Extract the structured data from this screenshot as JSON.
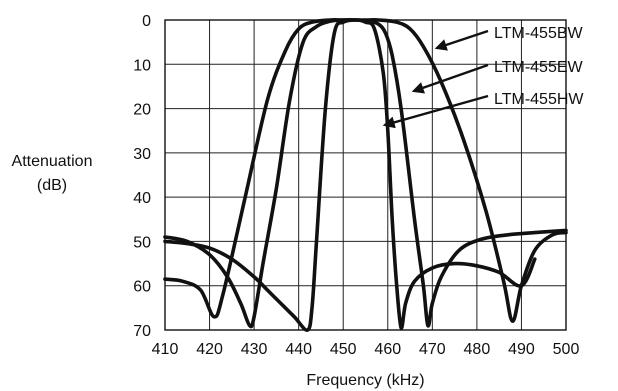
{
  "chart_data": {
    "type": "line",
    "title": "",
    "xlabel": "Frequency (kHz)",
    "ylabel_lines": [
      "Attenuation",
      "(dB)"
    ],
    "xlim": [
      410,
      500
    ],
    "ylim": [
      0,
      70
    ],
    "y_inverted": true,
    "grid": true,
    "x_ticks": [
      410,
      420,
      430,
      440,
      450,
      460,
      470,
      480,
      490,
      500
    ],
    "x_tick_labels": [
      "410",
      "420",
      "430",
      "440",
      "450",
      "460",
      "470",
      "480",
      "490",
      "500"
    ],
    "y_ticks": [
      0,
      10,
      20,
      30,
      40,
      50,
      60,
      70
    ],
    "y_tick_labels": [
      "0",
      "10",
      "20",
      "30",
      "40",
      "50",
      "60",
      "70"
    ],
    "series": [
      {
        "name": "LTM-455BW",
        "x": [
          410,
          414,
          418,
          421,
          423,
          428,
          433,
          437,
          440,
          443,
          447,
          450,
          455,
          458,
          462,
          465,
          468,
          472,
          477,
          482,
          486,
          488,
          490,
          493,
          497,
          500
        ],
        "y": [
          58.5,
          59,
          61,
          67,
          62,
          40,
          18,
          7,
          2,
          0.5,
          0,
          0,
          0,
          0,
          0.5,
          2,
          6,
          14,
          27,
          43,
          59,
          68,
          60,
          52,
          48.5,
          48
        ]
      },
      {
        "name": "LTM-455EW",
        "x": [
          410,
          415,
          420,
          424,
          427,
          429,
          430,
          432,
          435,
          438,
          441,
          444,
          447,
          450,
          453,
          456,
          458,
          459.5,
          461,
          463,
          466,
          468,
          469,
          470,
          472,
          476,
          481,
          487,
          493,
          500
        ],
        "y": [
          49,
          50,
          53,
          58,
          64,
          69,
          67,
          55,
          38,
          18,
          5,
          1.5,
          0.3,
          0,
          0,
          0.3,
          1,
          3,
          8,
          20,
          45,
          60,
          69,
          64,
          58,
          52,
          49.5,
          48.5,
          48,
          47.5
        ]
      },
      {
        "name": "LTM-455HW",
        "x": [
          410,
          415,
          420,
          425,
          430,
          433,
          436,
          439,
          442,
          443,
          444,
          446,
          448,
          450,
          453,
          455,
          457,
          459,
          460,
          461,
          462,
          463,
          464,
          466,
          470,
          475,
          480,
          485,
          490,
          493
        ],
        "y": [
          50,
          50.5,
          51.5,
          54,
          58,
          61,
          64,
          67,
          70,
          65,
          50,
          20,
          3,
          0.5,
          0,
          0.5,
          2,
          12,
          25,
          45,
          60,
          69.5,
          64,
          59,
          56,
          55,
          55.5,
          57,
          60,
          54
        ]
      }
    ],
    "annotations": [
      {
        "text": "LTM-455BW",
        "series": "LTM-455BW"
      },
      {
        "text": "LTM-455EW",
        "series": "LTM-455EW"
      },
      {
        "text": "LTM-455HW",
        "series": "LTM-455HW"
      }
    ]
  }
}
